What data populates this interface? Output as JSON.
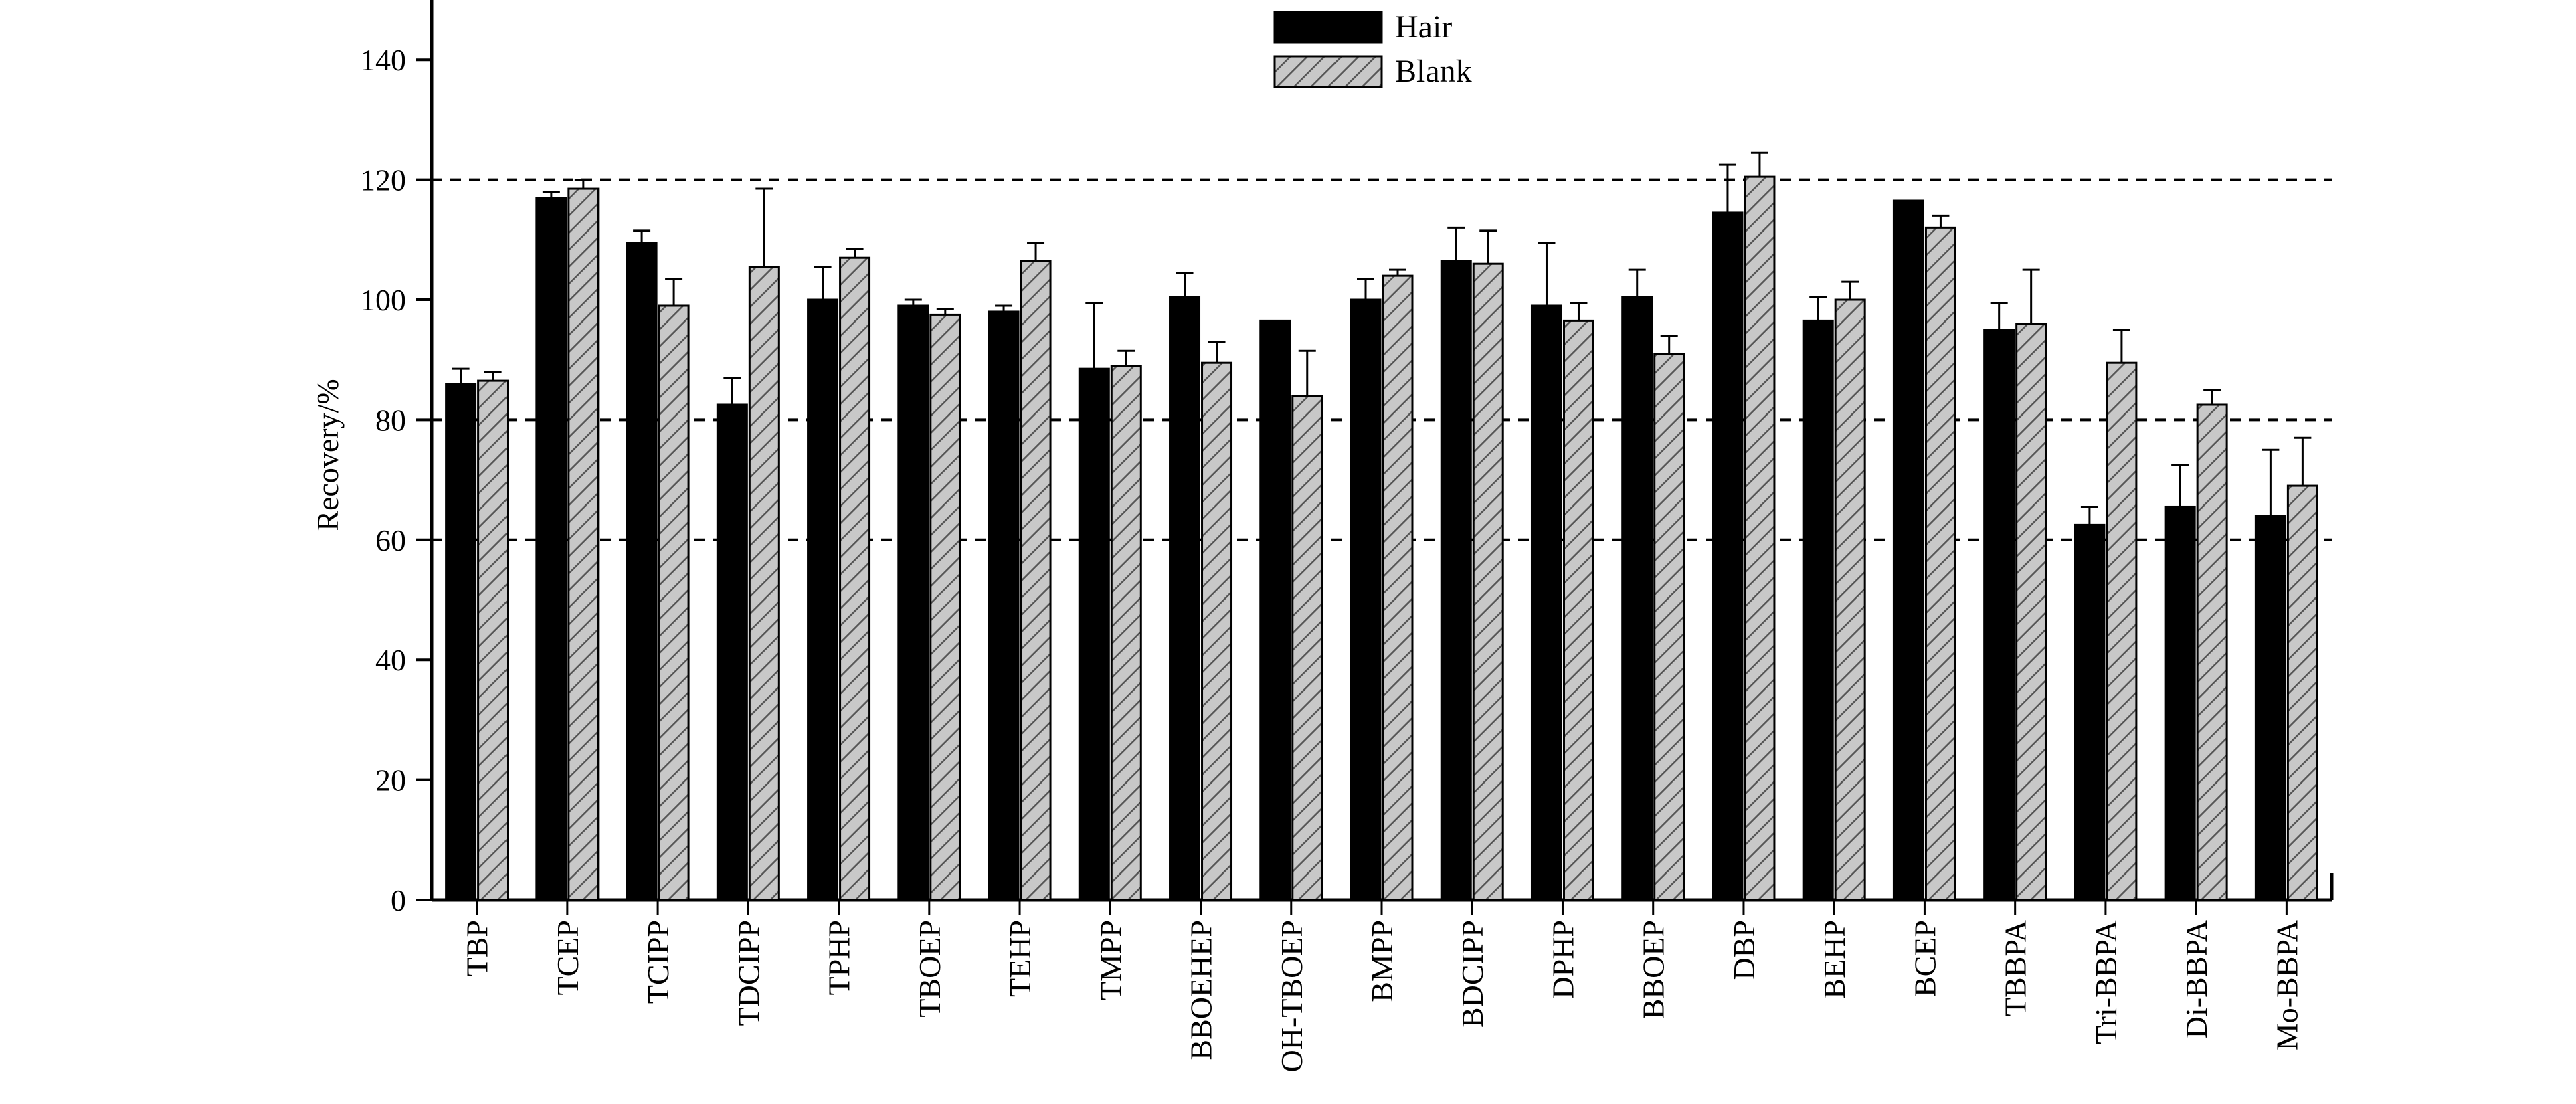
{
  "chart_data": {
    "type": "bar",
    "ylabel": "Recovery/%",
    "xlabel": "",
    "ylim": [
      0,
      150
    ],
    "yticks": [
      0,
      20,
      40,
      60,
      80,
      100,
      120,
      140
    ],
    "reference_lines": [
      60,
      80,
      120
    ],
    "legend_position": "top-center",
    "grid": false,
    "categories": [
      "TBP",
      "TCEP",
      "TCIPP",
      "TDCIPP",
      "TPHP",
      "TBOEP",
      "TEHP",
      "TMPP",
      "BBOEHEP",
      "OH-TBOEP",
      "BMPP",
      "BDCIPP",
      "DPHP",
      "BBOEP",
      "DBP",
      "BEHP",
      "BCEP",
      "TBBPA",
      "Tri-BBPA",
      "Di-BBPA",
      "Mo-BBPA"
    ],
    "series": [
      {
        "name": "Hair",
        "color": "#000000",
        "values": [
          86,
          117,
          109.5,
          82.5,
          100,
          99,
          98,
          88.5,
          100.5,
          96.5,
          100,
          106.5,
          99,
          100.5,
          114.5,
          96.5,
          116.5,
          95,
          62.5,
          65.5,
          64
        ],
        "errors": [
          2.5,
          1,
          2,
          4.5,
          5.5,
          1,
          1,
          11,
          4,
          0,
          3.5,
          5.5,
          10.5,
          4.5,
          8,
          4,
          0,
          4.5,
          3,
          7,
          11
        ]
      },
      {
        "name": "Blank",
        "color": "#c8c8c8",
        "values": [
          86.5,
          118.5,
          99,
          105.5,
          107,
          97.5,
          106.5,
          89,
          89.5,
          84,
          104,
          106,
          96.5,
          91,
          120.5,
          100,
          112,
          96,
          89.5,
          82.5,
          69
        ],
        "errors": [
          1.5,
          1.5,
          4.5,
          13,
          1.5,
          1,
          3,
          2.5,
          3.5,
          7.5,
          1,
          5.5,
          3,
          3,
          4,
          3,
          2,
          9,
          5.5,
          2.5,
          8
        ]
      }
    ]
  }
}
